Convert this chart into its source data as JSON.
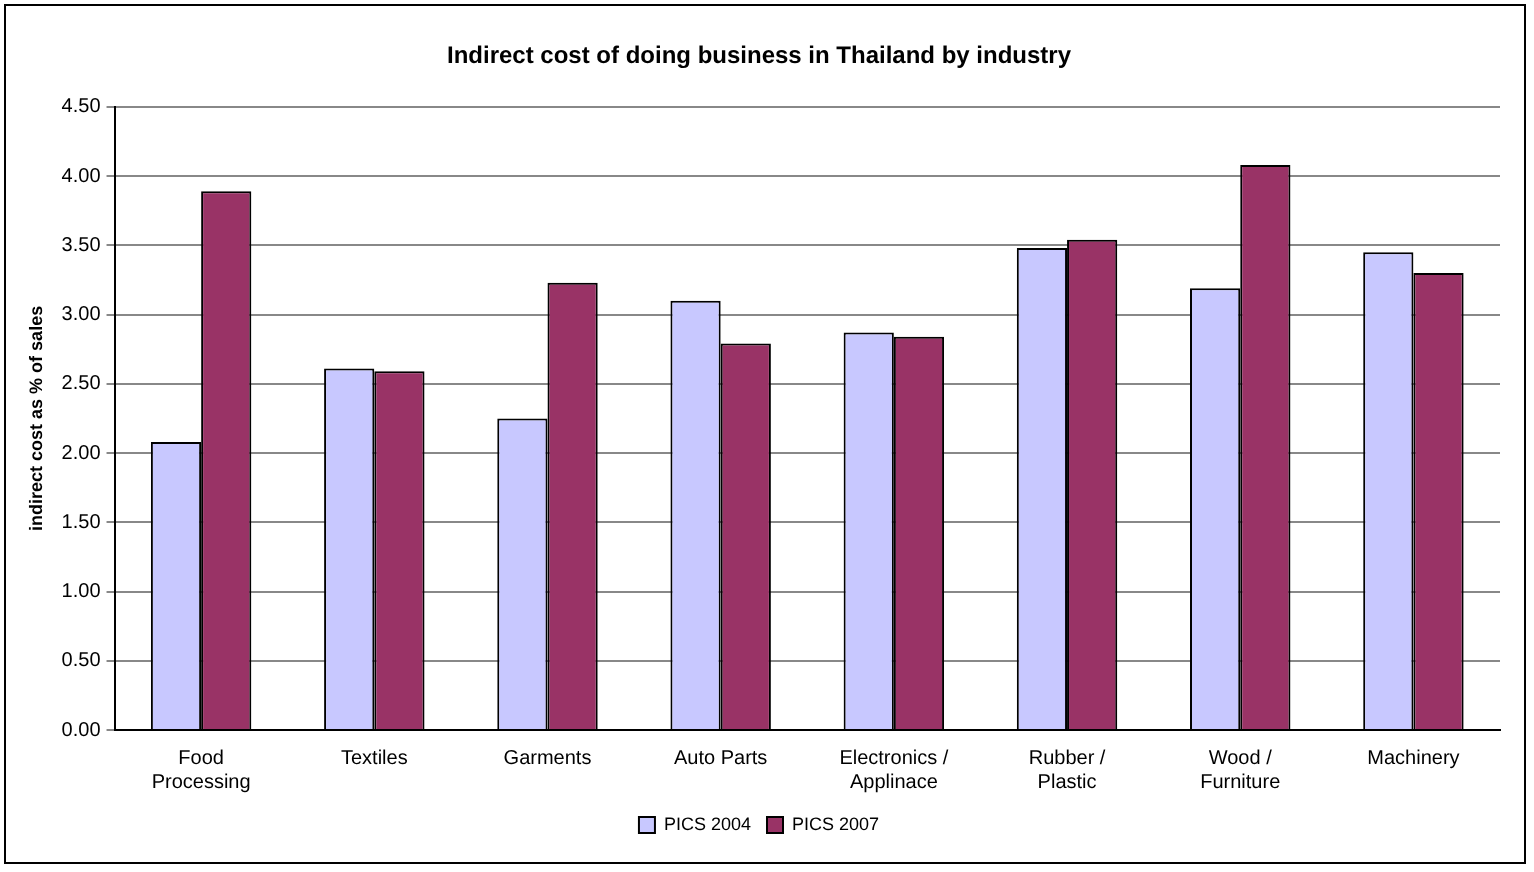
{
  "chart_data": {
    "type": "bar",
    "title": "Indirect cost of doing business in Thailand by industry",
    "ylabel": "indirect cost as % of sales",
    "categories": [
      "Food Processing",
      "Textiles",
      "Garments",
      "Auto Parts",
      "Electronics / Applinace",
      "Rubber / Plastic",
      "Wood / Furniture",
      "Machinery"
    ],
    "series": [
      {
        "name": "PICS 2004",
        "color": "#c8c8ff",
        "values": [
          2.08,
          2.61,
          2.25,
          3.1,
          2.87,
          3.48,
          3.19,
          3.45
        ]
      },
      {
        "name": "PICS 2007",
        "color": "#993366",
        "values": [
          3.89,
          2.59,
          3.23,
          2.79,
          2.84,
          3.54,
          4.08,
          3.3
        ]
      }
    ],
    "ylim": [
      0,
      4.5
    ],
    "yticks": [
      {
        "value": 0,
        "label": "0.00"
      },
      {
        "value": 0.5,
        "label": "0.50"
      },
      {
        "value": 1,
        "label": "1.00"
      },
      {
        "value": 1.5,
        "label": "1.50"
      },
      {
        "value": 2,
        "label": "2.00"
      },
      {
        "value": 2.5,
        "label": "2.50"
      },
      {
        "value": 3,
        "label": "3.00"
      },
      {
        "value": 3.5,
        "label": "3.50"
      },
      {
        "value": 4,
        "label": "4.00"
      },
      {
        "value": 4.5,
        "label": "4.50"
      }
    ],
    "grid": "y",
    "legend": "bottom"
  }
}
